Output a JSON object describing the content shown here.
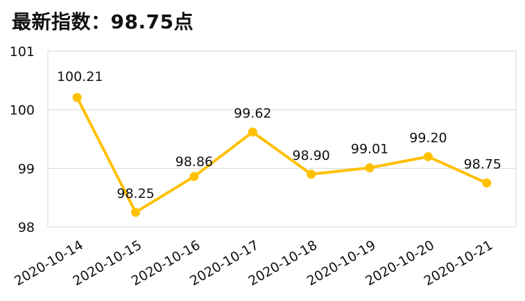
{
  "title": "最新指数：98.75点",
  "chart_data": {
    "type": "line",
    "title": "最新指数：98.75点",
    "categories": [
      "2020-10-14",
      "2020-10-15",
      "2020-10-16",
      "2020-10-17",
      "2020-10-18",
      "2020-10-19",
      "2020-10-20",
      "2020-10-21"
    ],
    "values": [
      100.21,
      98.25,
      98.86,
      99.62,
      98.9,
      99.01,
      99.2,
      98.75
    ],
    "value_labels": [
      "100.21",
      "98.25",
      "98.86",
      "99.62",
      "98.90",
      "99.01",
      "99.20",
      "98.75"
    ],
    "ylim": [
      98,
      101
    ],
    "y_ticks": [
      98,
      99,
      100,
      101
    ],
    "grid": true,
    "series_color": "#FFC000"
  }
}
